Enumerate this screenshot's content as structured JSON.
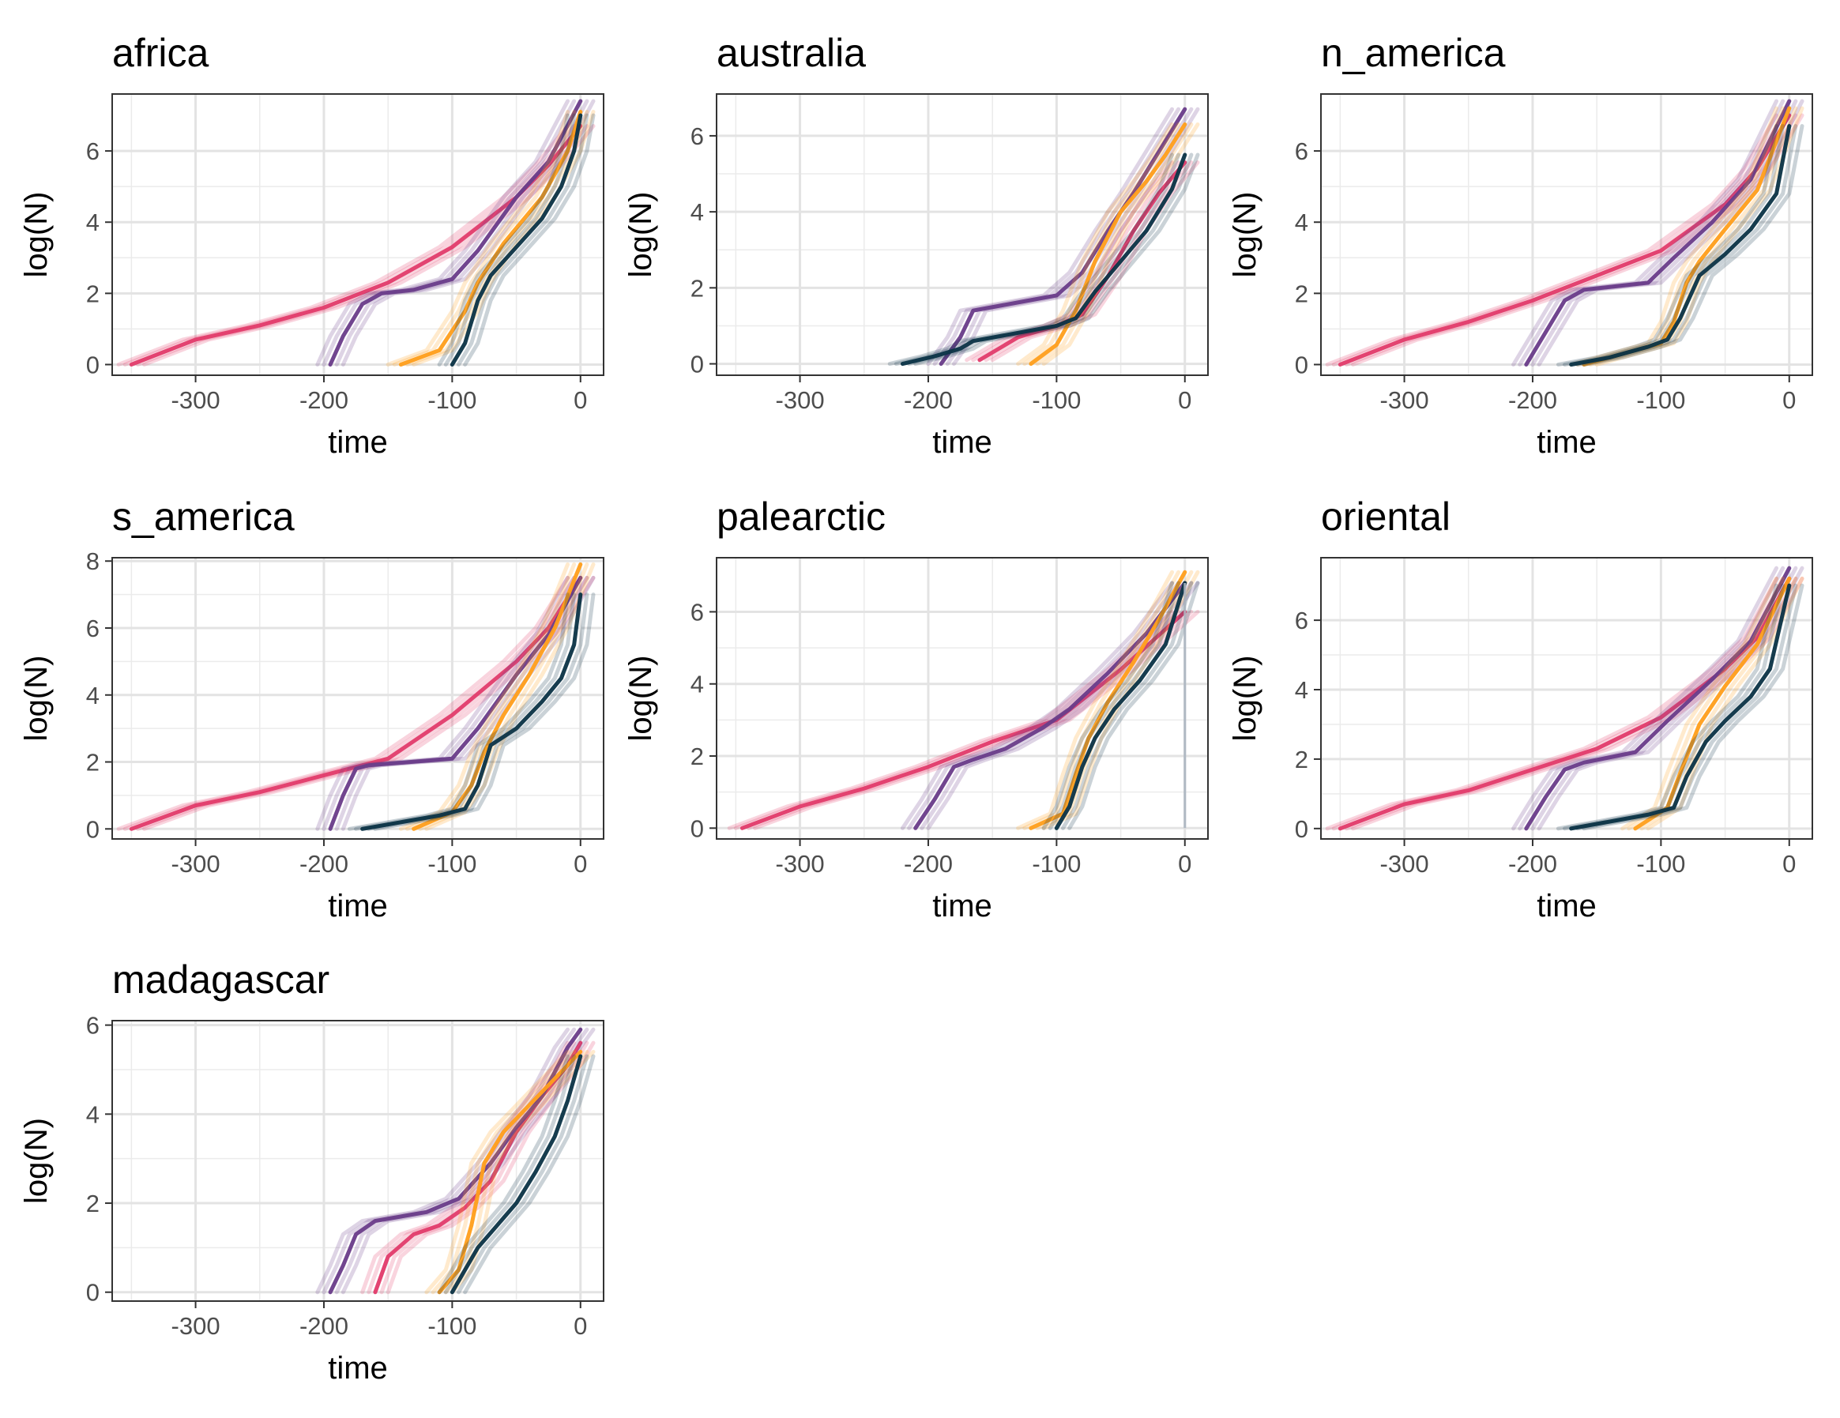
{
  "chart_data": {
    "type": "line",
    "xlabel": "time",
    "ylabel": "log(N)",
    "xlim": [
      -365,
      18
    ],
    "xticks": [
      -300,
      -200,
      -100,
      0
    ],
    "grid": true,
    "legend": "none",
    "series_colors": {
      "pink": "#e23c6b",
      "purple": "#6a3d8a",
      "orange": "#ff9f1c",
      "navy": "#0c3447"
    },
    "panels": [
      {
        "title": "africa",
        "ylim": [
          -0.3,
          7.6
        ],
        "yticks": [
          0,
          2,
          4,
          6
        ],
        "series": [
          {
            "color": "pink",
            "x": [
              -350,
              -300,
              -250,
              -200,
              -150,
              -100,
              -50,
              -25,
              0
            ],
            "y": [
              0,
              0.7,
              1.1,
              1.6,
              2.3,
              3.3,
              4.7,
              5.6,
              6.7
            ]
          },
          {
            "color": "purple",
            "x": [
              -195,
              -185,
              -170,
              -155,
              -130,
              -100,
              -80,
              -50,
              -25,
              0
            ],
            "y": [
              0,
              0.8,
              1.7,
              2.0,
              2.1,
              2.4,
              3.2,
              4.7,
              5.7,
              7.4
            ]
          },
          {
            "color": "orange",
            "x": [
              -140,
              -110,
              -90,
              -80,
              -60,
              -30,
              -10,
              0
            ],
            "y": [
              0,
              0.4,
              1.5,
              2.3,
              3.4,
              4.7,
              6.0,
              7.1
            ]
          },
          {
            "color": "navy",
            "x": [
              -100,
              -90,
              -80,
              -70,
              -50,
              -30,
              -15,
              -5,
              0
            ],
            "y": [
              0,
              0.6,
              1.8,
              2.5,
              3.3,
              4.1,
              5.0,
              6.0,
              7.0
            ]
          }
        ]
      },
      {
        "title": "australia",
        "ylim": [
          -0.3,
          7.1
        ],
        "yticks": [
          0,
          2,
          4,
          6
        ],
        "series": [
          {
            "color": "pink",
            "x": [
              -160,
              -130,
              -100,
              -80,
              -60,
              -40,
              -20,
              0
            ],
            "y": [
              0.1,
              0.7,
              1.0,
              1.3,
              2.3,
              3.5,
              4.5,
              5.3
            ]
          },
          {
            "color": "purple",
            "x": [
              -190,
              -175,
              -165,
              -100,
              -80,
              -60,
              -40,
              -20,
              0
            ],
            "y": [
              0,
              0.7,
              1.4,
              1.8,
              2.4,
              3.5,
              4.5,
              5.6,
              6.7
            ]
          },
          {
            "color": "orange",
            "x": [
              -120,
              -100,
              -85,
              -70,
              -50,
              -30,
              -15,
              0
            ],
            "y": [
              0,
              0.5,
              1.4,
              2.7,
              4.0,
              4.8,
              5.5,
              6.3
            ]
          },
          {
            "color": "navy",
            "x": [
              -220,
              -195,
              -175,
              -165,
              -100,
              -85,
              -70,
              -50,
              -30,
              -10,
              0
            ],
            "y": [
              0,
              0.2,
              0.4,
              0.6,
              1.0,
              1.2,
              1.9,
              2.7,
              3.5,
              4.6,
              5.5
            ]
          }
        ]
      },
      {
        "title": "n_america",
        "ylim": [
          -0.3,
          7.6
        ],
        "yticks": [
          0,
          2,
          4,
          6
        ],
        "series": [
          {
            "color": "pink",
            "x": [
              -350,
              -300,
              -250,
              -200,
              -150,
              -100,
              -50,
              -25,
              0
            ],
            "y": [
              0,
              0.7,
              1.2,
              1.8,
              2.5,
              3.2,
              4.5,
              5.5,
              7.0
            ]
          },
          {
            "color": "purple",
            "x": [
              -205,
              -190,
              -175,
              -160,
              -110,
              -90,
              -60,
              -30,
              0
            ],
            "y": [
              0,
              0.9,
              1.8,
              2.1,
              2.3,
              3.0,
              4.0,
              5.2,
              7.4
            ]
          },
          {
            "color": "orange",
            "x": [
              -160,
              -100,
              -90,
              -80,
              -70,
              -50,
              -25,
              0
            ],
            "y": [
              0,
              0.6,
              1.2,
              2.3,
              2.9,
              3.8,
              4.9,
              7.2
            ]
          },
          {
            "color": "navy",
            "x": [
              -170,
              -140,
              -110,
              -95,
              -85,
              -70,
              -50,
              -30,
              -10,
              0
            ],
            "y": [
              0,
              0.2,
              0.5,
              0.7,
              1.3,
              2.5,
              3.1,
              3.8,
              4.8,
              6.7
            ]
          }
        ]
      },
      {
        "title": "s_america",
        "ylim": [
          -0.3,
          8.1
        ],
        "yticks": [
          0,
          2,
          4,
          6,
          8
        ],
        "series": [
          {
            "color": "pink",
            "x": [
              -350,
              -300,
              -250,
              -200,
              -150,
              -100,
              -75,
              -50,
              -25,
              0
            ],
            "y": [
              0,
              0.7,
              1.1,
              1.6,
              2.1,
              3.4,
              4.2,
              5.0,
              6.0,
              7.5
            ]
          },
          {
            "color": "purple",
            "x": [
              -195,
              -185,
              -175,
              -165,
              -100,
              -80,
              -50,
              -25,
              0
            ],
            "y": [
              0,
              1.0,
              1.8,
              1.9,
              2.1,
              3.0,
              4.6,
              5.8,
              7.5
            ]
          },
          {
            "color": "orange",
            "x": [
              -130,
              -100,
              -85,
              -75,
              -60,
              -40,
              -20,
              0
            ],
            "y": [
              0,
              0.5,
              1.3,
              2.3,
              3.4,
              4.6,
              6.0,
              7.9
            ]
          },
          {
            "color": "navy",
            "x": [
              -170,
              -140,
              -110,
              -90,
              -80,
              -70,
              -50,
              -30,
              -15,
              -5,
              0
            ],
            "y": [
              0,
              0.2,
              0.4,
              0.6,
              1.3,
              2.5,
              3.0,
              3.8,
              4.5,
              5.5,
              7.0
            ]
          }
        ]
      },
      {
        "title": "palearctic",
        "ylim": [
          -0.3,
          7.5
        ],
        "yticks": [
          0,
          2,
          4,
          6
        ],
        "series": [
          {
            "color": "pink",
            "x": [
              -345,
              -300,
              -250,
              -200,
              -150,
              -100,
              -75,
              -50,
              -25,
              0
            ],
            "y": [
              0,
              0.6,
              1.1,
              1.7,
              2.4,
              3.0,
              3.7,
              4.4,
              5.2,
              6.0
            ]
          },
          {
            "color": "purple",
            "x": [
              -210,
              -195,
              -180,
              -165,
              -140,
              -110,
              -90,
              -60,
              -30,
              0
            ],
            "y": [
              0,
              0.8,
              1.7,
              1.9,
              2.2,
              2.8,
              3.3,
              4.3,
              5.4,
              6.8
            ]
          },
          {
            "color": "orange",
            "x": [
              -120,
              -95,
              -85,
              -75,
              -60,
              -40,
              -20,
              0
            ],
            "y": [
              0,
              0.4,
              1.5,
              2.5,
              3.5,
              4.6,
              5.8,
              7.1
            ]
          },
          {
            "color": "navy",
            "x": [
              -100,
              -90,
              -80,
              -70,
              -55,
              -35,
              -15,
              0
            ],
            "y": [
              0,
              0.6,
              1.7,
              2.5,
              3.3,
              4.1,
              5.1,
              6.8
            ]
          },
          {
            "color": "navy",
            "x": [
              0,
              0
            ],
            "y": [
              0,
              6.8
            ]
          }
        ]
      },
      {
        "title": "oriental",
        "ylim": [
          -0.3,
          7.8
        ],
        "yticks": [
          0,
          2,
          4,
          6
        ],
        "series": [
          {
            "color": "pink",
            "x": [
              -350,
              -300,
              -250,
              -200,
              -150,
              -100,
              -50,
              -25,
              0
            ],
            "y": [
              0,
              0.7,
              1.1,
              1.7,
              2.3,
              3.2,
              4.6,
              5.5,
              7.2
            ]
          },
          {
            "color": "purple",
            "x": [
              -205,
              -190,
              -175,
              -160,
              -120,
              -95,
              -60,
              -30,
              0
            ],
            "y": [
              0,
              0.9,
              1.7,
              1.9,
              2.2,
              3.1,
              4.3,
              5.4,
              7.5
            ]
          },
          {
            "color": "orange",
            "x": [
              -120,
              -95,
              -85,
              -70,
              -50,
              -25,
              0
            ],
            "y": [
              0,
              0.6,
              1.6,
              3.0,
              4.1,
              5.3,
              7.2
            ]
          },
          {
            "color": "navy",
            "x": [
              -170,
              -140,
              -110,
              -90,
              -80,
              -65,
              -50,
              -30,
              -15,
              0
            ],
            "y": [
              0,
              0.2,
              0.4,
              0.6,
              1.5,
              2.5,
              3.1,
              3.8,
              4.6,
              7.0
            ]
          }
        ]
      },
      {
        "title": "madagascar",
        "ylim": [
          -0.2,
          6.1
        ],
        "yticks": [
          0,
          2,
          4,
          6
        ],
        "series": [
          {
            "color": "pink",
            "x": [
              -160,
              -150,
              -130,
              -110,
              -90,
              -70,
              -50,
              -30,
              -10,
              0
            ],
            "y": [
              0,
              0.8,
              1.3,
              1.5,
              1.9,
              2.5,
              3.6,
              4.4,
              5.1,
              5.6
            ]
          },
          {
            "color": "purple",
            "x": [
              -195,
              -185,
              -175,
              -160,
              -120,
              -95,
              -70,
              -50,
              -30,
              -10,
              0
            ],
            "y": [
              0,
              0.6,
              1.3,
              1.6,
              1.8,
              2.1,
              2.9,
              3.7,
              4.4,
              5.5,
              5.9
            ]
          },
          {
            "color": "orange",
            "x": [
              -110,
              -95,
              -85,
              -75,
              -60,
              -40,
              -20,
              0
            ],
            "y": [
              0,
              0.5,
              1.5,
              2.9,
              3.6,
              4.2,
              4.8,
              5.4
            ]
          },
          {
            "color": "navy",
            "x": [
              -100,
              -90,
              -80,
              -65,
              -50,
              -35,
              -20,
              -10,
              0
            ],
            "y": [
              0,
              0.5,
              1.0,
              1.5,
              2.0,
              2.7,
              3.5,
              4.3,
              5.3
            ]
          }
        ]
      }
    ]
  }
}
